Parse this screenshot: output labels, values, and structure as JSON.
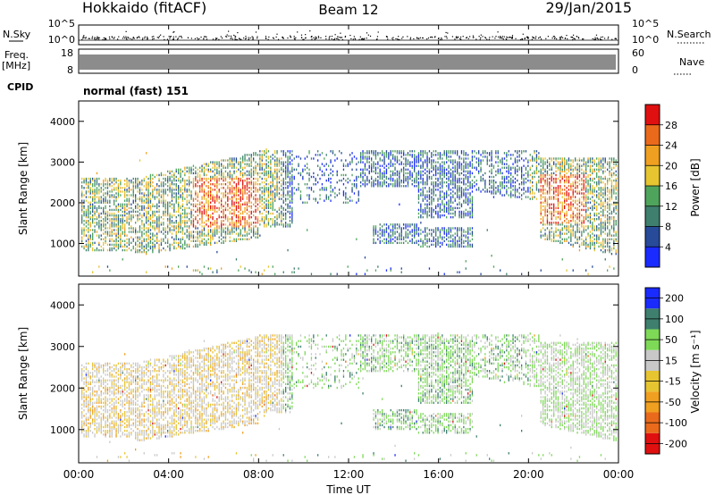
{
  "header": {
    "station": "Hokkaido (fitACF)",
    "beam": "Beam 12",
    "date": "29/Jan/2015"
  },
  "sky_panel": {
    "left_label": "N.Sky",
    "left_ticks": [
      "10^5",
      "10^0"
    ],
    "right_ticks": [
      "10^5",
      "10^0"
    ],
    "right_label": "N.Search"
  },
  "freq_panel": {
    "left_label_1": "Freq.",
    "left_label_2": "[MHz]",
    "left_ticks": [
      "18",
      "8"
    ],
    "right_ticks": [
      "60",
      "0"
    ],
    "right_label": "Nave"
  },
  "cpid": {
    "label": "CPID",
    "value": "normal (fast) 151"
  },
  "colors": {
    "power": [
      "#1a2bff",
      "#274a99",
      "#3f7f6e",
      "#4fa45c",
      "#e6c531",
      "#f0a020",
      "#ea6a1c",
      "#e01010"
    ],
    "velocity": [
      "#e01010",
      "#ea6a1c",
      "#f0a020",
      "#e6c531",
      "#c8c8c8",
      "#7ed957",
      "#3f7f6e",
      "#1a2bff"
    ]
  },
  "chart_data": [
    {
      "type": "heatmap",
      "ylabel": "Slant Range [km]",
      "ylim": [
        200,
        4500
      ],
      "yticks": [
        "1000",
        "2000",
        "3000",
        "4000"
      ],
      "xlabel": "Time UT",
      "xticks": [
        "00:00",
        "04:00",
        "08:00",
        "12:00",
        "16:00",
        "20:00",
        "00:00"
      ],
      "colorbar_label": "Power [dB]",
      "colorbar_ticks": [
        "4",
        "8",
        "12",
        "16",
        "20",
        "24",
        "28"
      ]
    },
    {
      "type": "heatmap",
      "ylabel": "Slant Range [km]",
      "ylim": [
        200,
        4500
      ],
      "yticks": [
        "1000",
        "2000",
        "3000",
        "4000"
      ],
      "xlabel": "Time UT",
      "xticks": [
        "00:00",
        "04:00",
        "08:00",
        "12:00",
        "16:00",
        "20:00",
        "00:00"
      ],
      "colorbar_label": "Velocity [m s⁻¹]",
      "colorbar_ticks": [
        "200",
        "100",
        "50",
        "15",
        "-15",
        "-50",
        "-100",
        "-200"
      ]
    }
  ]
}
